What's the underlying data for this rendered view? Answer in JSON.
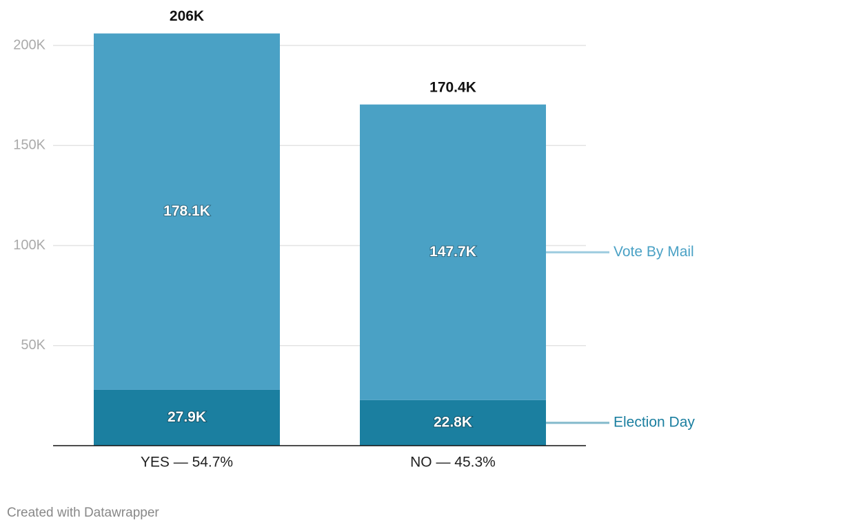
{
  "chart_data": {
    "type": "stacked_bar",
    "categories": [
      "YES — 54.7%",
      "NO — 45.3%"
    ],
    "series": [
      {
        "name": "Election Day",
        "color": "#1b7fa0",
        "values": [
          27900,
          22800
        ],
        "value_labels": [
          "27.9K",
          "22.8K"
        ]
      },
      {
        "name": "Vote By Mail",
        "color": "#4aa1c5",
        "values": [
          178100,
          147700
        ],
        "value_labels": [
          "178.1K",
          "147.7K"
        ]
      }
    ],
    "totals": [
      206000,
      170400
    ],
    "total_labels": [
      "206K",
      "170.4K"
    ],
    "ylim": [
      0,
      200000
    ],
    "yticks": [
      {
        "value": 50000,
        "label": "50K"
      },
      {
        "value": 100000,
        "label": "100K"
      },
      {
        "value": 150000,
        "label": "150K"
      },
      {
        "value": 200000,
        "label": "200K"
      }
    ],
    "grid": true,
    "footer": "Created with Datawrapper"
  }
}
